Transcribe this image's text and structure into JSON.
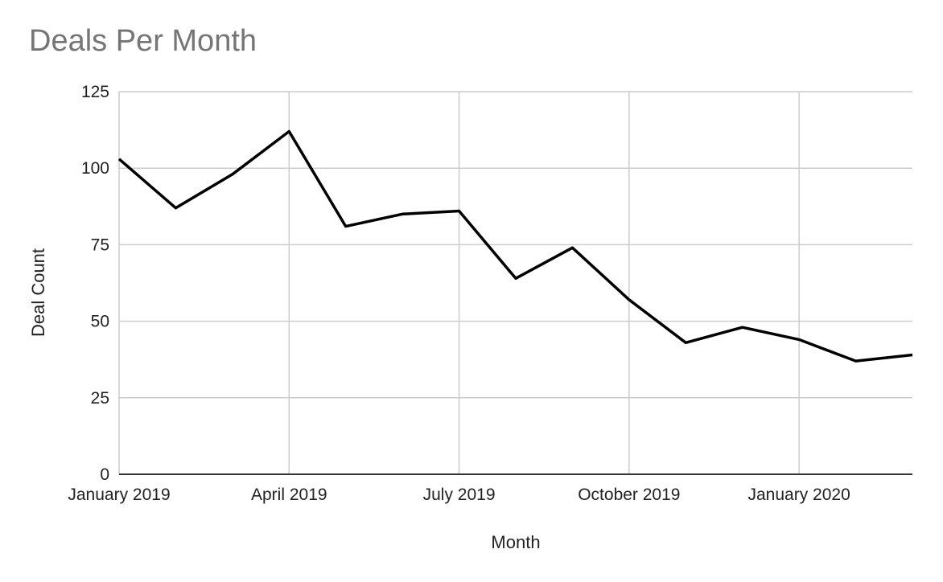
{
  "chart_data": {
    "type": "line",
    "title": "Deals Per Month",
    "xlabel": "Month",
    "ylabel": "Deal Count",
    "ylim": [
      0,
      125
    ],
    "yticks": [
      0,
      25,
      50,
      75,
      100,
      125
    ],
    "xticks": [
      "January 2019",
      "April 2019",
      "July 2019",
      "October 2019",
      "January 2020"
    ],
    "x": [
      "2019-01",
      "2019-02",
      "2019-03",
      "2019-04",
      "2019-05",
      "2019-06",
      "2019-07",
      "2019-08",
      "2019-09",
      "2019-10",
      "2019-11",
      "2019-12",
      "2020-01",
      "2020-02",
      "2020-03"
    ],
    "series": [
      {
        "values": [
          103,
          87,
          98,
          112,
          81,
          85,
          86,
          64,
          74,
          57,
          43,
          48,
          44,
          37,
          39
        ]
      }
    ],
    "grid": true,
    "colors": {
      "line": "#000000",
      "grid": "#cccccc",
      "title": "#757575"
    }
  }
}
